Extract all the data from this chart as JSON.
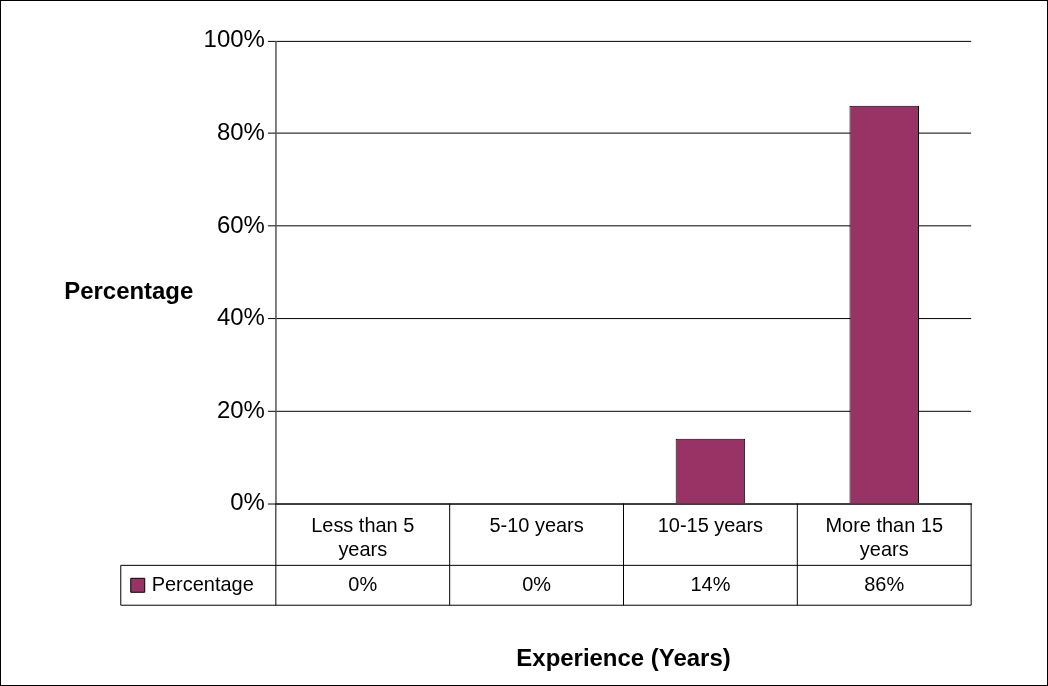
{
  "chart_data": {
    "type": "bar",
    "xlabel": "Experience (Years)",
    "ylabel": "Percentage",
    "categories": [
      "Less than 5 years",
      "5-10 years",
      "10-15 years",
      "More than 15 years"
    ],
    "series": [
      {
        "name": "Percentage",
        "color": "#993366",
        "values": [
          0,
          0,
          14,
          86
        ],
        "value_labels": [
          "0%",
          "0%",
          "14%",
          "86%"
        ]
      }
    ],
    "ylim": [
      0,
      100
    ],
    "yticks": [
      {
        "value": 0,
        "label": "0%"
      },
      {
        "value": 20,
        "label": "20%"
      },
      {
        "value": 40,
        "label": "40%"
      },
      {
        "value": 60,
        "label": "60%"
      },
      {
        "value": 80,
        "label": "80%"
      },
      {
        "value": 100,
        "label": "100%"
      }
    ],
    "grid": "y",
    "legend": "bottom left"
  }
}
